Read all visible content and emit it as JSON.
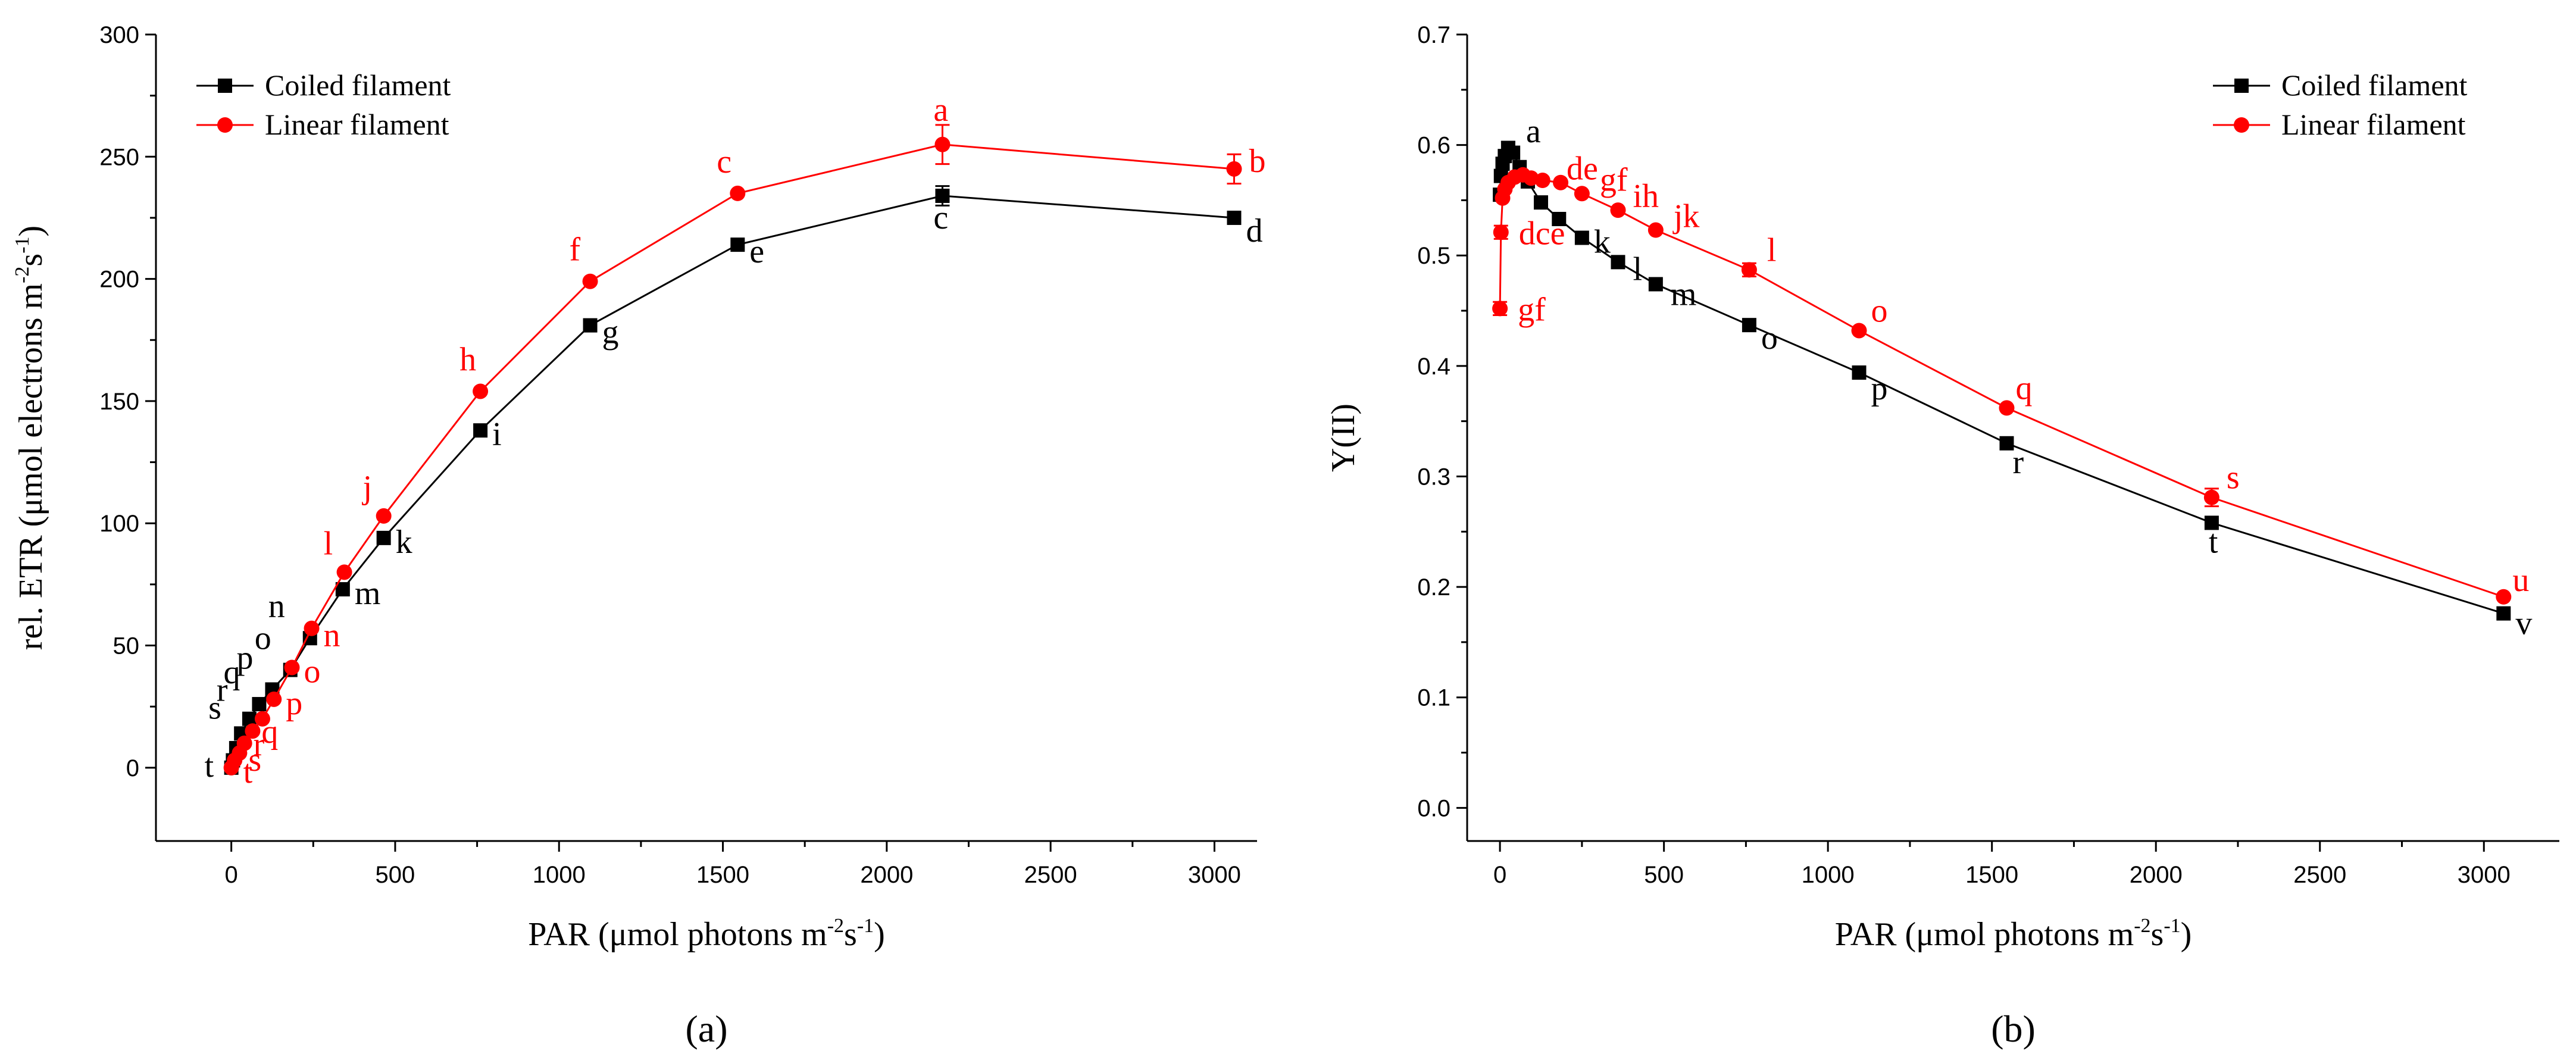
{
  "chart_data": [
    {
      "type": "line",
      "panel_label": "(a)",
      "xlabel": "PAR (μmol photons m",
      "xlabel_sup": "-2",
      "xlabel_mid": "s",
      "xlabel_sup2": "-1",
      "xlabel_end": ")",
      "ylabel": "rel. ETR (μmol electrons m",
      "ylabel_sup": "-2",
      "ylabel_mid": "s",
      "ylabel_sup2": "-1",
      "ylabel_end": ")",
      "xlim": [
        -230,
        3130
      ],
      "ylim": [
        -30,
        300
      ],
      "xticks": [
        0,
        500,
        1000,
        1500,
        2000,
        2500,
        3000
      ],
      "yticks": [
        0,
        50,
        100,
        150,
        200,
        250,
        300
      ],
      "xtick_labels": [
        "0",
        "500",
        "1000",
        "1500",
        "2000",
        "2500",
        "3000"
      ],
      "ytick_labels": [
        "0",
        "50",
        "100",
        "150",
        "200",
        "250",
        "300"
      ],
      "legend": [
        "Coiled filament",
        "Linear filament"
      ],
      "series": [
        {
          "name": "Coiled filament",
          "color": "#000000",
          "marker": "square",
          "x": [
            0,
            5,
            15,
            30,
            55,
            85,
            125,
            180,
            240,
            340,
            465,
            760,
            1095,
            1545,
            2170,
            3060
          ],
          "y": [
            0,
            3,
            8,
            14,
            20,
            26,
            32,
            40,
            53,
            73,
            94,
            138,
            181,
            214,
            234,
            225
          ],
          "err": [
            0,
            0,
            0,
            0,
            0,
            0,
            0,
            0,
            0,
            0,
            0,
            0,
            0,
            0,
            4,
            0
          ],
          "labels": [
            "t",
            "s",
            "r",
            "q",
            "p",
            "o",
            "n",
            "m",
            "k",
            "i",
            "g",
            "e",
            "c",
            "d"
          ],
          "label_indices": [
            0,
            3,
            4,
            5,
            6,
            7,
            8,
            9,
            10,
            11,
            12,
            13,
            14,
            15
          ],
          "label_offsets": [
            [
              -45,
              15
            ],
            [
              -55,
              -25
            ],
            [
              -55,
              -30
            ],
            [
              -60,
              -35
            ],
            [
              -60,
              -35
            ],
            [
              -60,
              -35
            ],
            [
              -70,
              -35
            ],
            [
              20,
              25
            ],
            [
              20,
              25
            ],
            [
              20,
              25
            ],
            [
              20,
              30
            ],
            [
              20,
              30
            ],
            [
              -15,
              55
            ],
            [
              20,
              40
            ]
          ]
        },
        {
          "name": "Linear filament",
          "color": "#ff0000",
          "marker": "circle",
          "x": [
            0,
            10,
            25,
            40,
            65,
            95,
            130,
            185,
            245,
            345,
            465,
            760,
            1095,
            1545,
            2170,
            3060
          ],
          "y": [
            0,
            3,
            6,
            10,
            15,
            20,
            28,
            41,
            57,
            80,
            103,
            154,
            199,
            235,
            255,
            245
          ],
          "err": [
            0,
            0,
            0,
            0,
            0,
            0,
            0,
            0,
            0,
            0,
            0,
            0,
            0,
            0,
            8,
            6
          ],
          "labels": [
            "t",
            "s",
            "r",
            "q",
            "p",
            "o",
            "n",
            "l",
            "j",
            "h",
            "f",
            "c",
            "a",
            "b"
          ],
          "label_indices": [
            0,
            2,
            3,
            4,
            6,
            7,
            8,
            9,
            10,
            11,
            12,
            13,
            14,
            15
          ],
          "label_offsets": [
            [
              20,
              25
            ],
            [
              15,
              30
            ],
            [
              15,
              20
            ],
            [
              15,
              20
            ],
            [
              20,
              25
            ],
            [
              20,
              25
            ],
            [
              20,
              30
            ],
            [
              -35,
              -30
            ],
            [
              -35,
              -30
            ],
            [
              -35,
              -35
            ],
            [
              -35,
              -35
            ],
            [
              -35,
              -35
            ],
            [
              -15,
              -40
            ],
            [
              25,
              5
            ]
          ]
        }
      ]
    },
    {
      "type": "line",
      "panel_label": "(b)",
      "xlabel": "PAR (μmol photons m",
      "xlabel_sup": "-2",
      "xlabel_mid": "s",
      "xlabel_sup2": "-1",
      "xlabel_end": ")",
      "ylabel": "Y(II)",
      "xlim": [
        -100,
        3230
      ],
      "ylim": [
        -0.03,
        0.7
      ],
      "xticks": [
        0,
        500,
        1000,
        1500,
        2000,
        2500,
        3000
      ],
      "yticks": [
        0.0,
        0.1,
        0.2,
        0.3,
        0.4,
        0.5,
        0.6,
        0.7
      ],
      "xtick_labels": [
        "0",
        "500",
        "1000",
        "1500",
        "2000",
        "2500",
        "3000"
      ],
      "ytick_labels": [
        "0.0",
        "0.1",
        "0.2",
        "0.3",
        "0.4",
        "0.5",
        "0.6",
        "0.7"
      ],
      "legend": [
        "Coiled filament",
        "Linear filament"
      ],
      "series": [
        {
          "name": "Coiled filament",
          "color": "#000000",
          "marker": "square",
          "x": [
            0,
            3,
            8,
            15,
            25,
            40,
            60,
            85,
            125,
            180,
            250,
            360,
            475,
            760,
            1095,
            1545,
            2170,
            3060
          ],
          "y": [
            0.555,
            0.572,
            0.583,
            0.59,
            0.597,
            0.593,
            0.58,
            0.567,
            0.548,
            0.533,
            0.516,
            0.494,
            0.474,
            0.437,
            0.394,
            0.33,
            0.258,
            0.176
          ],
          "err": [
            0,
            0,
            0,
            0,
            0.006,
            0,
            0,
            0,
            0,
            0,
            0,
            0,
            0,
            0,
            0,
            0,
            0,
            0
          ],
          "labels": [
            "a",
            "k",
            "l",
            "m",
            "o",
            "p",
            "r",
            "t",
            "v"
          ],
          "label_indices": [
            4,
            10,
            11,
            12,
            13,
            14,
            15,
            16,
            17
          ],
          "label_offsets": [
            [
              30,
              -10
            ],
            [
              20,
              25
            ],
            [
              25,
              30
            ],
            [
              25,
              35
            ],
            [
              20,
              40
            ],
            [
              20,
              45
            ],
            [
              10,
              50
            ],
            [
              -5,
              50
            ],
            [
              20,
              35
            ]
          ]
        },
        {
          "name": "Linear filament",
          "color": "#ff0000",
          "marker": "circle",
          "x": [
            0,
            3,
            8,
            15,
            25,
            45,
            70,
            95,
            130,
            185,
            250,
            360,
            475,
            760,
            1095,
            1545,
            2170,
            3060
          ],
          "y": [
            0.452,
            0.521,
            0.552,
            0.56,
            0.566,
            0.571,
            0.573,
            0.57,
            0.568,
            0.566,
            0.556,
            0.541,
            0.523,
            0.487,
            0.432,
            0.362,
            0.281,
            0.191
          ],
          "err": [
            0.006,
            0.006,
            0,
            0,
            0,
            0,
            0,
            0,
            0,
            0,
            0,
            0,
            0,
            0.006,
            0,
            0,
            0.008,
            0
          ],
          "labels": [
            "gf",
            "dce",
            "de",
            "gf",
            "ih",
            "jk",
            "l",
            "o",
            "q",
            "s",
            "u"
          ],
          "label_indices": [
            0,
            1,
            9,
            10,
            11,
            12,
            13,
            14,
            15,
            16,
            17
          ],
          "label_offsets": [
            [
              30,
              20
            ],
            [
              30,
              20
            ],
            [
              10,
              -5
            ],
            [
              30,
              -5
            ],
            [
              25,
              -5
            ],
            [
              30,
              -5
            ],
            [
              30,
              -15
            ],
            [
              20,
              -15
            ],
            [
              15,
              -15
            ],
            [
              25,
              -15
            ],
            [
              15,
              -10
            ]
          ]
        }
      ]
    }
  ]
}
